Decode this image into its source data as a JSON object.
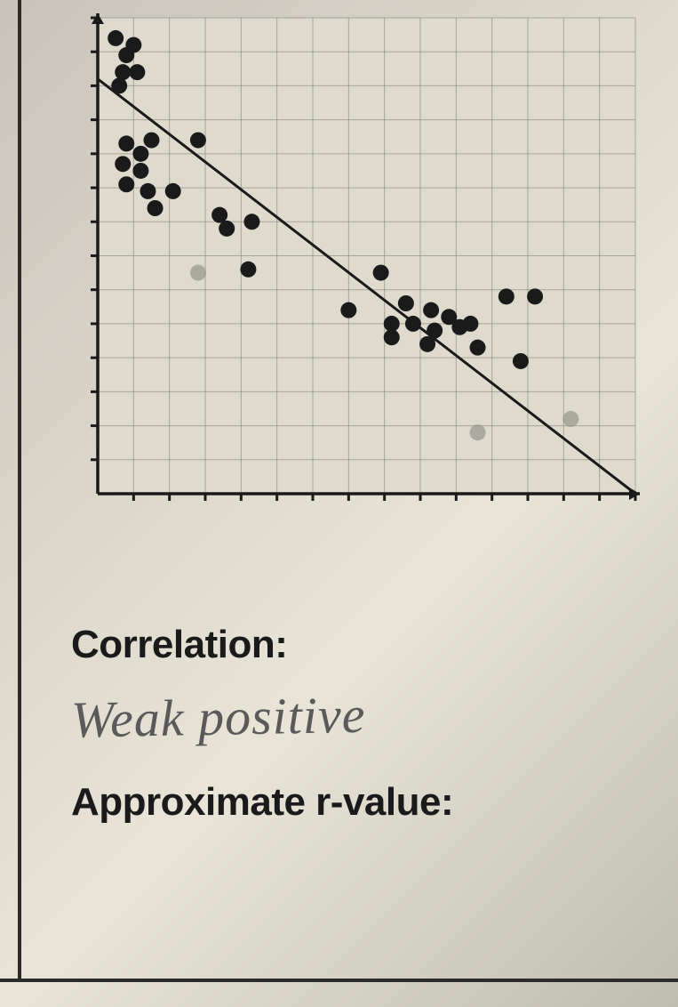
{
  "chart": {
    "type": "scatter",
    "xlim": [
      0,
      15
    ],
    "ylim": [
      0,
      14
    ],
    "xtick_step": 1,
    "ytick_step": 1,
    "background_color": "#dedacd",
    "grid_color": "#7a7a70",
    "grid_width": 1,
    "axis_color": "#1a1a1a",
    "axis_width": 3.5,
    "tick_length": 8,
    "fit_line": {
      "x1": 0,
      "y1": 12.2,
      "x2": 15,
      "y2": 0,
      "color": "#1a1a1a",
      "width": 3
    },
    "point_radius": 9,
    "point_color": "#1a1a1a",
    "faded_point_color": "#8a8a80",
    "points": [
      {
        "x": 0.5,
        "y": 13.4
      },
      {
        "x": 1.0,
        "y": 13.2
      },
      {
        "x": 0.8,
        "y": 12.9
      },
      {
        "x": 0.7,
        "y": 12.4
      },
      {
        "x": 1.1,
        "y": 12.4
      },
      {
        "x": 0.6,
        "y": 12.0
      },
      {
        "x": 0.8,
        "y": 10.3
      },
      {
        "x": 1.2,
        "y": 10.0
      },
      {
        "x": 1.5,
        "y": 10.4
      },
      {
        "x": 0.7,
        "y": 9.7
      },
      {
        "x": 1.2,
        "y": 9.5
      },
      {
        "x": 0.8,
        "y": 9.1
      },
      {
        "x": 1.4,
        "y": 8.9
      },
      {
        "x": 2.1,
        "y": 8.9
      },
      {
        "x": 1.6,
        "y": 8.4
      },
      {
        "x": 2.8,
        "y": 10.4
      },
      {
        "x": 3.4,
        "y": 8.2
      },
      {
        "x": 3.6,
        "y": 7.8
      },
      {
        "x": 4.3,
        "y": 8.0
      },
      {
        "x": 4.2,
        "y": 6.6
      },
      {
        "x": 7.0,
        "y": 5.4
      },
      {
        "x": 7.9,
        "y": 6.5
      },
      {
        "x": 8.2,
        "y": 5.0
      },
      {
        "x": 8.6,
        "y": 5.6
      },
      {
        "x": 8.2,
        "y": 4.6
      },
      {
        "x": 8.8,
        "y": 5.0
      },
      {
        "x": 9.3,
        "y": 5.4
      },
      {
        "x": 9.4,
        "y": 4.8
      },
      {
        "x": 9.2,
        "y": 4.4
      },
      {
        "x": 9.8,
        "y": 5.2
      },
      {
        "x": 10.1,
        "y": 4.9
      },
      {
        "x": 10.4,
        "y": 5.0
      },
      {
        "x": 10.6,
        "y": 4.3
      },
      {
        "x": 11.4,
        "y": 5.8
      },
      {
        "x": 12.2,
        "y": 5.8
      },
      {
        "x": 11.8,
        "y": 3.9
      }
    ],
    "faded_points": [
      {
        "x": 2.8,
        "y": 6.5
      },
      {
        "x": 10.6,
        "y": 1.8
      },
      {
        "x": 13.2,
        "y": 2.2
      }
    ]
  },
  "labels": {
    "correlation_label": "Correlation:",
    "correlation_answer": "Weak positive",
    "rvalue_label": "Approximate r-value:"
  }
}
